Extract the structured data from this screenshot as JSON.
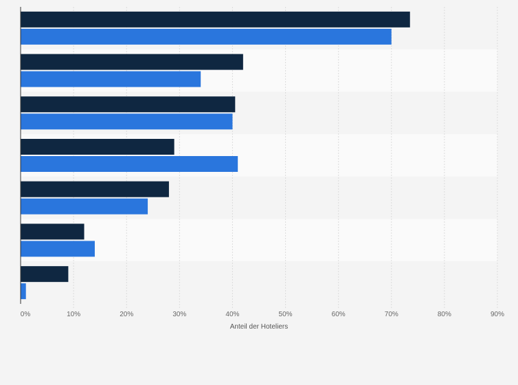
{
  "chart_data": {
    "type": "bar",
    "orientation": "horizontal",
    "categories": [
      "",
      "",
      "",
      "",
      "",
      "",
      ""
    ],
    "series": [
      {
        "color": "#0f2741",
        "values": [
          73.5,
          42,
          40.5,
          29,
          28,
          12,
          9
        ]
      },
      {
        "color": "#2a76dd",
        "values": [
          70,
          34,
          40,
          41,
          24,
          14,
          1
        ]
      }
    ],
    "xlim": [
      0,
      90
    ],
    "xticks": [
      0,
      10,
      20,
      30,
      40,
      50,
      60,
      70,
      80,
      90
    ],
    "xtick_labels": [
      "0%",
      "10%",
      "20%",
      "30%",
      "40%",
      "50%",
      "60%",
      "70%",
      "80%",
      "90%"
    ],
    "xlabel": "Anteil der Hoteliers",
    "grid": true,
    "legend": "none"
  }
}
